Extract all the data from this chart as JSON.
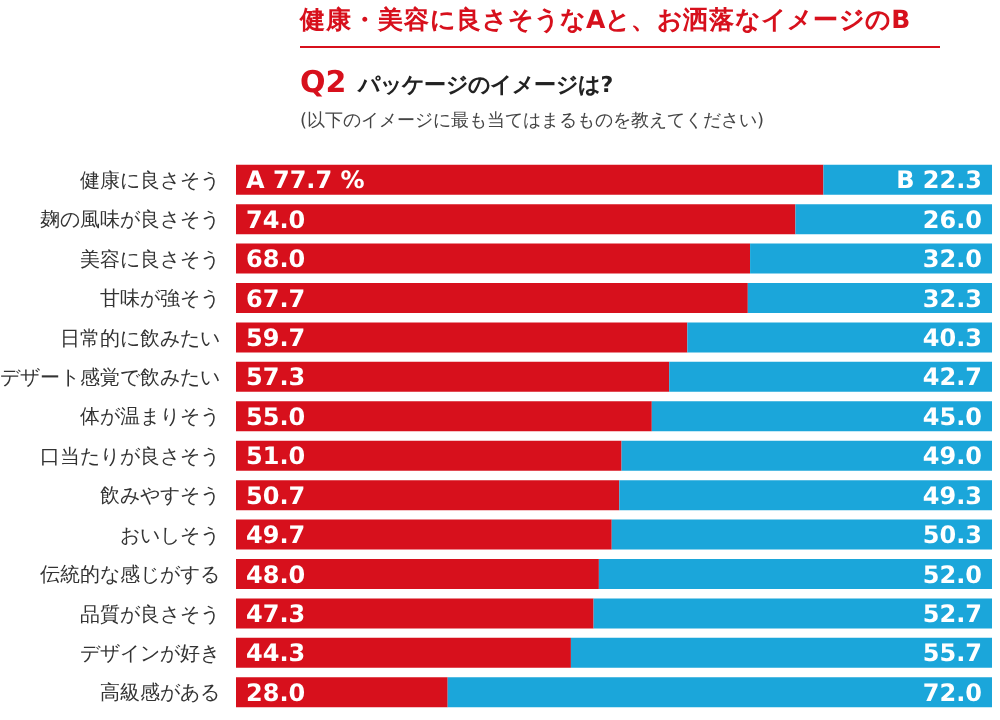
{
  "chart_data": {
    "type": "bar",
    "orientation": "horizontal",
    "stacked": true,
    "title": "健康・美容に良さそうなAと、お洒落なイメージのB",
    "subtitle": "Q2 パッケージのイメージは?",
    "annotations": [
      "(以下のイメージに最も当てはまるものを教えてください)"
    ],
    "categories": [
      "健康に良さそう",
      "麹の風味が良さそう",
      "美容に良さそう",
      "甘味が強そう",
      "日常的に飲みたい",
      "デザート感覚で飲みたい",
      "体が温まりそう",
      "口当たりが良さそう",
      "飲みやすそう",
      "おいしそう",
      "伝統的な感じがする",
      "品質が良さそう",
      "デザインが好き",
      "高級感がある"
    ],
    "series": [
      {
        "color": "#d7101c",
        "values": [
          77.7,
          74.0,
          68.0,
          67.7,
          59.7,
          57.3,
          55.0,
          51.0,
          50.7,
          49.7,
          48.0,
          47.3,
          44.3,
          28.0
        ],
        "value_labels": [
          "A 77.7 %",
          "74.0",
          "68.0",
          "67.7",
          "59.7",
          "57.3",
          "55.0",
          "51.0",
          "50.7",
          "49.7",
          "48.0",
          "47.3",
          "44.3",
          "28.0"
        ]
      },
      {
        "color": "#1ba6da",
        "values": [
          22.3,
          26.0,
          32.0,
          32.3,
          40.3,
          42.7,
          45.0,
          49.0,
          49.3,
          50.3,
          52.0,
          52.7,
          55.7,
          72.0
        ],
        "value_labels": [
          "B 22.3",
          "26.0",
          "32.0",
          "32.3",
          "40.3",
          "42.7",
          "45.0",
          "49.0",
          "49.3",
          "50.3",
          "52.0",
          "52.7",
          "55.7",
          "72.0"
        ]
      }
    ],
    "legend": false,
    "grid": false
  }
}
